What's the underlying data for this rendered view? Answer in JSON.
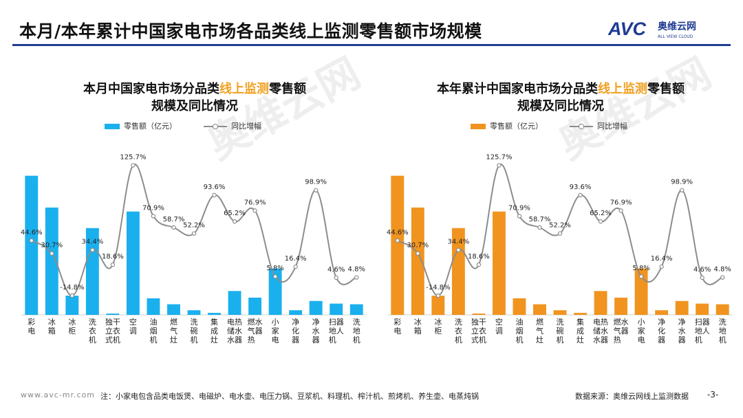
{
  "page": {
    "title": "本月/本年累计中国家电市场各品类线上监测零售额市场规模",
    "logo_text": "AVC",
    "logo_cn": "奥维云网",
    "logo_en": "ALL VIEW CLOUD",
    "watermark_cn": "奥维云网",
    "watermark_en": "ALL VIEW CLOUD"
  },
  "colors": {
    "blue": "#1ab0ee",
    "orange": "#f0941f",
    "line": "#8c8c8c",
    "highlight": "#f0a020",
    "rule": "#1f3b93"
  },
  "charts": [
    {
      "title_pre": "本月中国家电市场分品类",
      "title_hl": "线上监测",
      "title_post": "零售额",
      "title_line2": "规模及同比情况",
      "legend_bar": "零售额（亿元）",
      "legend_line": "同比增幅"
    },
    {
      "title_pre": "本年累计中国家电市场分品类",
      "title_hl": "线上监测",
      "title_post": "零售额",
      "title_line2": "规模及同比情况",
      "legend_bar": "零售额（亿元）",
      "legend_line": "同比增幅"
    }
  ],
  "chart_data": [
    {
      "type": "bar",
      "categories": [
        "彩电",
        "冰箱",
        "冰柜",
        "洗衣机",
        "独立式干衣机",
        "空调",
        "油烟机",
        "燃气灶",
        "洗碗机",
        "集成灶",
        "电储水热水器",
        "燃气热水器",
        "小家电",
        "净化器",
        "净水器",
        "扫地机器人",
        "洗地机"
      ],
      "series": [
        {
          "name": "零售额（亿元）",
          "kind": "bar",
          "values": [
            210,
            162,
            29,
            131,
            2,
            156,
            25,
            16,
            7,
            3,
            36,
            26,
            70,
            7,
            21,
            17,
            16
          ]
        },
        {
          "name": "同比增幅",
          "kind": "line",
          "values": [
            44.6,
            30.7,
            -14.8,
            34.4,
            18.6,
            125.7,
            70.9,
            58.7,
            52.2,
            93.6,
            65.2,
            76.9,
            5.8,
            16.4,
            98.9,
            4.6,
            4.8
          ],
          "labels": [
            "44.6%",
            "30.7%",
            "-14.8%",
            "34.4%",
            "18.6%",
            "125.7%",
            "70.9%",
            "58.7%",
            "52.2%",
            "93.6%",
            "65.2%",
            "76.9%",
            "5.8%",
            "16.4%",
            "98.9%",
            "4.6%",
            "4.8%"
          ]
        }
      ],
      "legend": "top"
    },
    {
      "type": "bar",
      "categories": [
        "彩电",
        "冰箱",
        "冰柜",
        "洗衣机",
        "独立式干衣机",
        "空调",
        "油烟机",
        "燃气灶",
        "洗碗机",
        "集成灶",
        "电储水热水器",
        "燃气热水器",
        "小家电",
        "净化器",
        "净水器",
        "扫地机器人",
        "洗地机"
      ],
      "series": [
        {
          "name": "零售额（亿元）",
          "kind": "bar",
          "values": [
            210,
            162,
            29,
            131,
            2,
            156,
            25,
            16,
            7,
            3,
            36,
            26,
            70,
            7,
            21,
            17,
            16
          ]
        },
        {
          "name": "同比增幅",
          "kind": "line",
          "values": [
            44.6,
            30.7,
            -14.8,
            34.4,
            18.6,
            125.7,
            70.9,
            58.7,
            52.2,
            93.6,
            65.2,
            76.9,
            5.8,
            16.4,
            98.9,
            4.6,
            4.8
          ],
          "labels": [
            "44.6%",
            "30.7%",
            "-14.8%",
            "34.4%",
            "18.6%",
            "125.7%",
            "70.9%",
            "58.7%",
            "52.2%",
            "93.6%",
            "65.2%",
            "76.9%",
            "5.8%",
            "16.4%",
            "98.9%",
            "4.6%",
            "4.8%"
          ]
        }
      ],
      "legend": "top"
    }
  ],
  "footer": {
    "url": "www.avc-mr.com",
    "note": "注：小家电包含品类电饭煲、电磁炉、电水壶、电压力锅、豆浆机、料理机、榨汁机、煎烤机、养生壶、电蒸炖锅",
    "source": "数据来源：奥维云网线上监测数据",
    "page_number": "-3-"
  }
}
